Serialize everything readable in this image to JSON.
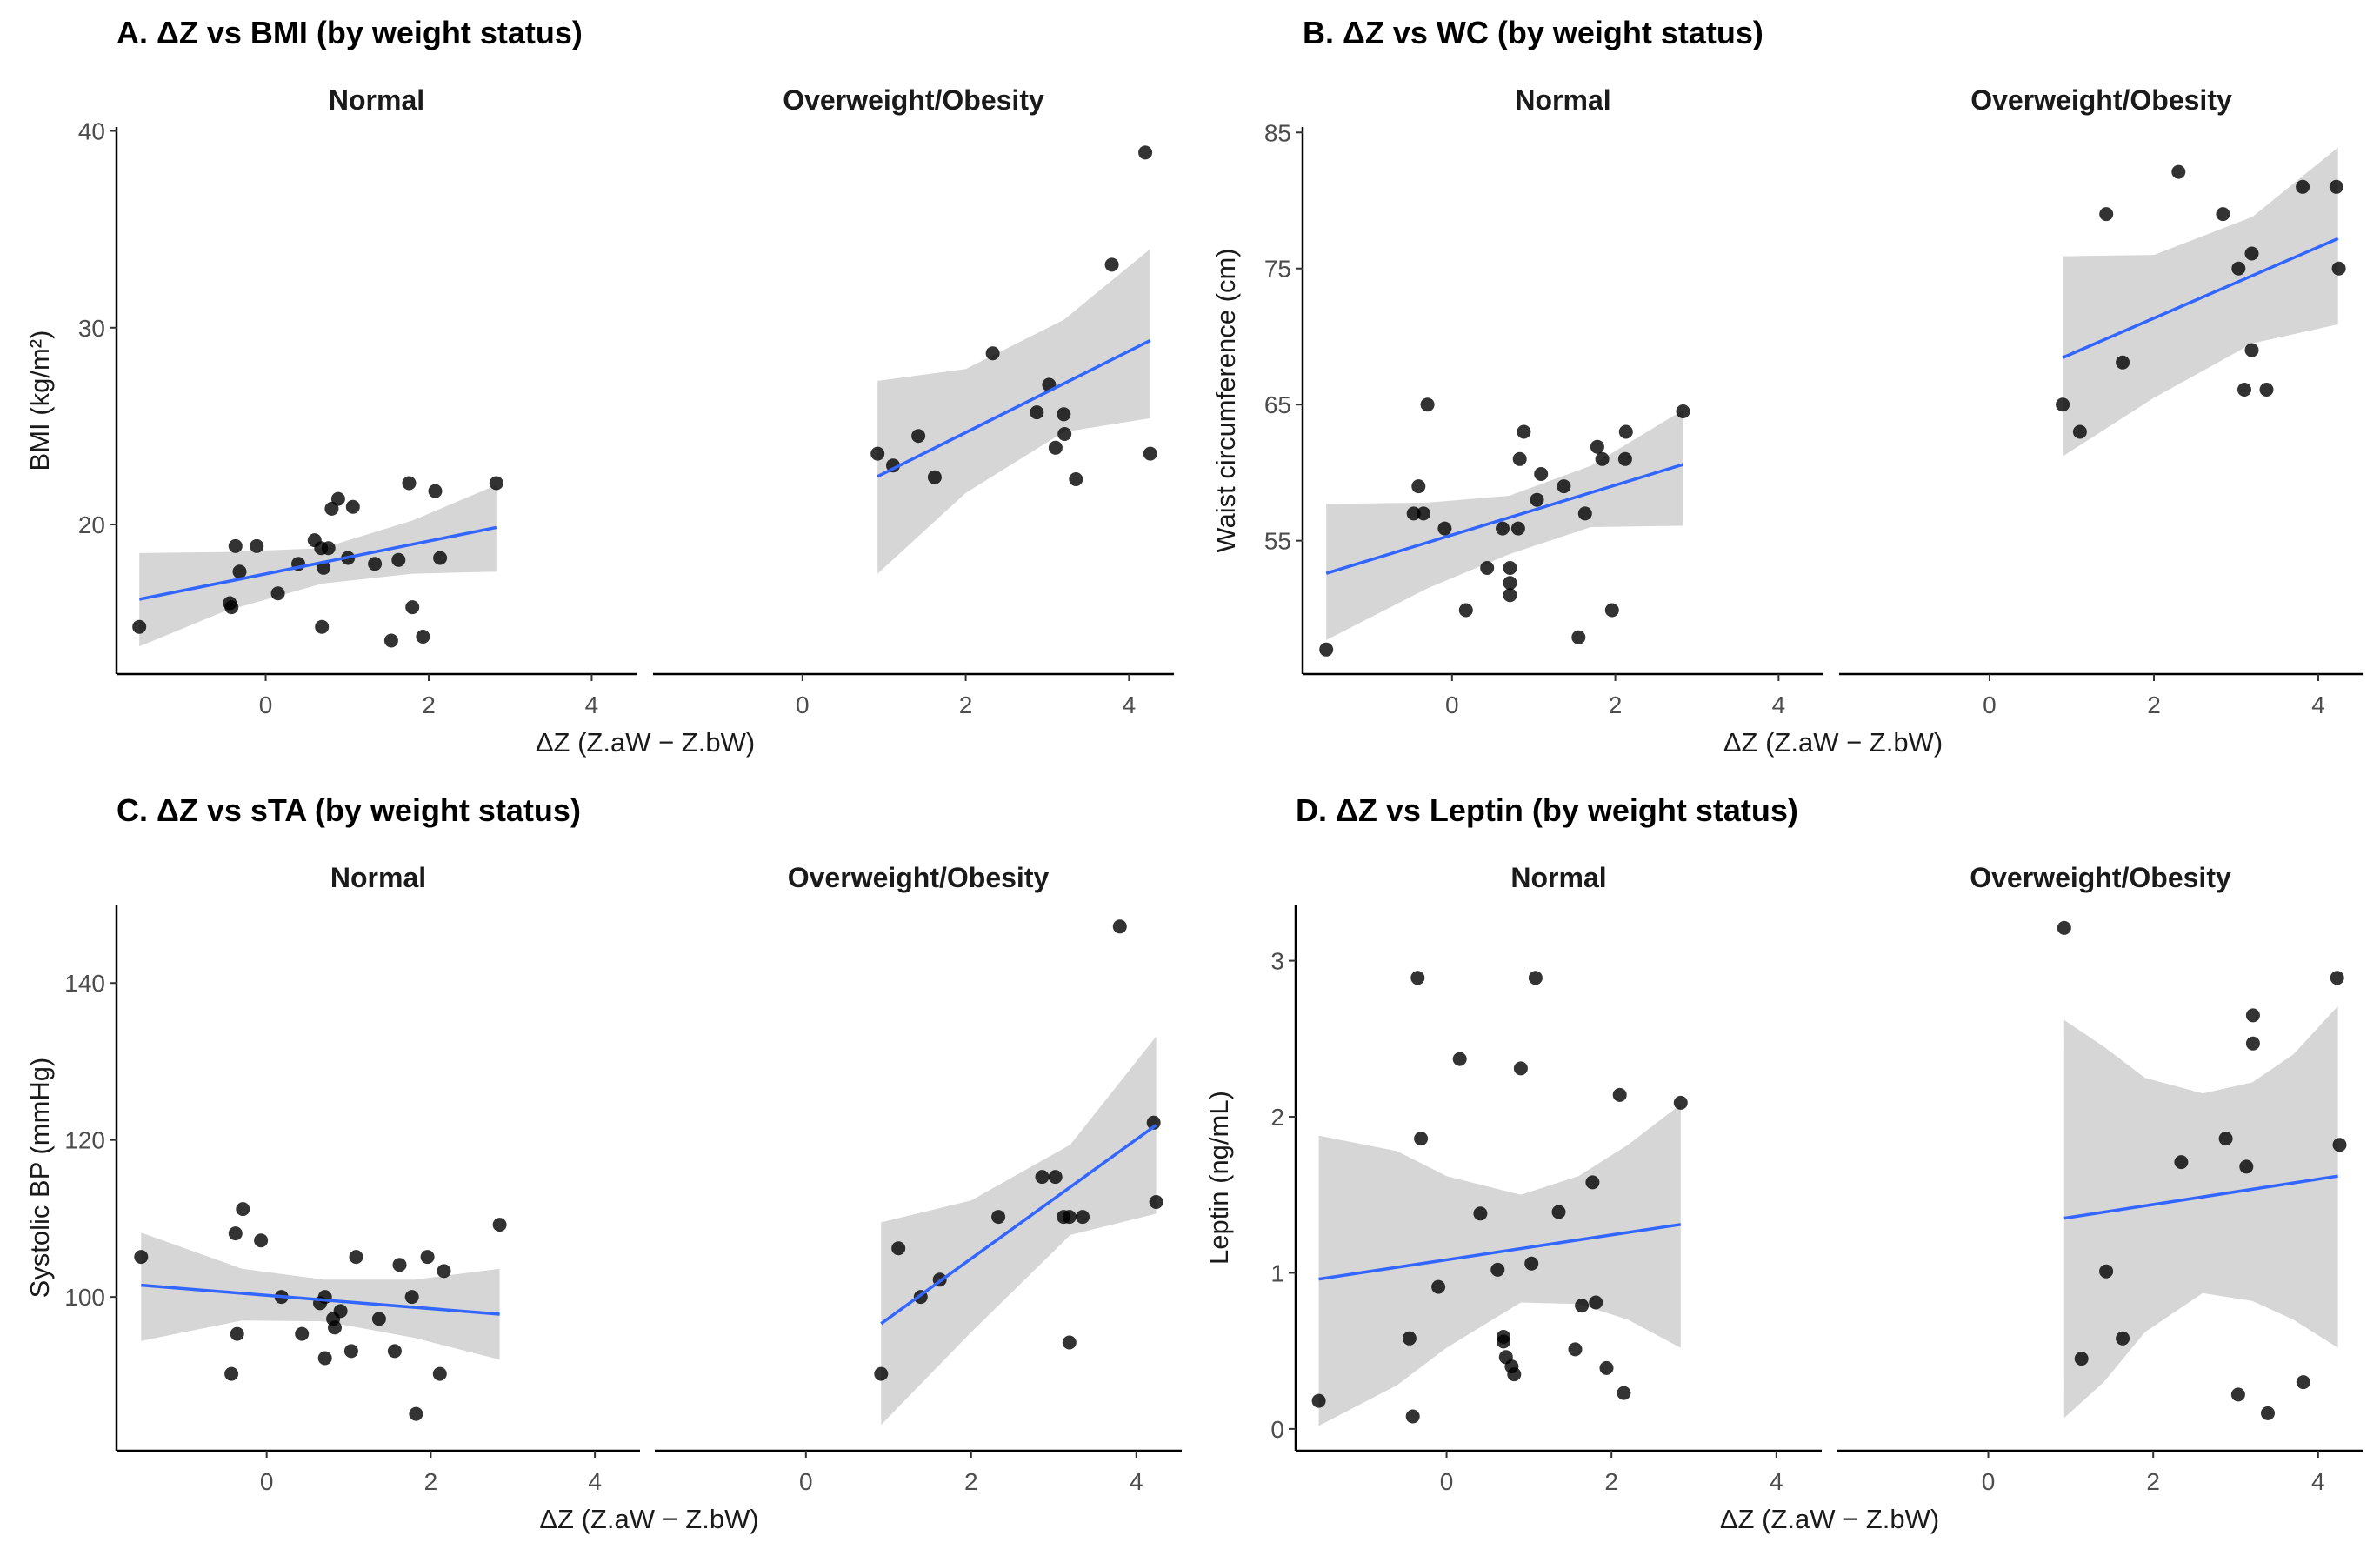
{
  "colors": {
    "fit_line": "#3366FF",
    "band": "#d6d6d6",
    "point": "#000000",
    "axis": "#000000"
  },
  "chart_data": [
    {
      "type": "scatter",
      "title": "A. ΔZ vs BMI (by weight status)",
      "xlabel": "ΔZ (Z.aW − Z.bW)",
      "ylabel": "BMI (kg/m²)",
      "xlim": [
        -1.83,
        4.55
      ],
      "ylim": [
        12.4,
        40.2
      ],
      "xticks": [
        0,
        2,
        4
      ],
      "yticks": [
        20,
        30,
        40
      ],
      "grid": false,
      "facets": [
        {
          "name": "Normal",
          "points": [
            [
              -1.55,
              14.8
            ],
            [
              -0.37,
              18.9
            ],
            [
              -0.11,
              18.9
            ],
            [
              -0.32,
              17.6
            ],
            [
              -0.44,
              16.0
            ],
            [
              -0.42,
              15.8
            ],
            [
              0.15,
              16.5
            ],
            [
              0.4,
              18.0
            ],
            [
              0.6,
              19.2
            ],
            [
              0.68,
              18.8
            ],
            [
              0.77,
              18.8
            ],
            [
              0.71,
              17.8
            ],
            [
              0.81,
              20.8
            ],
            [
              0.89,
              21.3
            ],
            [
              1.07,
              20.9
            ],
            [
              1.01,
              18.3
            ],
            [
              1.34,
              18.0
            ],
            [
              0.69,
              14.8
            ],
            [
              1.54,
              14.1
            ],
            [
              1.63,
              18.2
            ],
            [
              1.8,
              15.8
            ],
            [
              1.76,
              22.1
            ],
            [
              1.93,
              14.3
            ],
            [
              2.08,
              21.7
            ],
            [
              2.14,
              18.3
            ],
            [
              2.83,
              22.1
            ]
          ],
          "fit": [
            [
              -1.55,
              16.2
            ],
            [
              2.83,
              19.85
            ]
          ],
          "band": [
            [
              -1.55,
              13.8,
              18.55
            ],
            [
              -0.5,
              15.6,
              18.6
            ],
            [
              0.7,
              17.0,
              18.8
            ],
            [
              1.8,
              17.5,
              20.2
            ],
            [
              2.83,
              17.6,
              22.0
            ]
          ]
        },
        {
          "name": "Overweight/Obesity",
          "points": [
            [
              0.92,
              23.6
            ],
            [
              1.11,
              23.0
            ],
            [
              1.42,
              24.5
            ],
            [
              1.62,
              22.4
            ],
            [
              2.33,
              28.7
            ],
            [
              2.87,
              25.7
            ],
            [
              3.02,
              27.1
            ],
            [
              3.2,
              25.6
            ],
            [
              3.21,
              24.6
            ],
            [
              3.1,
              23.9
            ],
            [
              3.35,
              22.3
            ],
            [
              3.79,
              33.2
            ],
            [
              4.2,
              38.9
            ],
            [
              4.26,
              23.6
            ]
          ],
          "fit": [
            [
              0.92,
              22.44
            ],
            [
              4.26,
              29.35
            ]
          ],
          "band": [
            [
              0.92,
              17.5,
              27.3
            ],
            [
              2.0,
              21.6,
              27.9
            ],
            [
              3.2,
              24.7,
              30.4
            ],
            [
              4.26,
              25.4,
              34.0
            ]
          ]
        }
      ]
    },
    {
      "type": "scatter",
      "title": "B. ΔZ vs WC (by weight status)",
      "xlabel": "ΔZ (Z.aW − Z.bW)",
      "ylabel": "Waist circumference (cm)",
      "xlim": [
        -1.83,
        4.55
      ],
      "ylim": [
        45.2,
        85.4
      ],
      "xticks": [
        0,
        2,
        4
      ],
      "yticks": [
        55,
        65,
        75,
        85
      ],
      "grid": false,
      "facets": [
        {
          "name": "Normal",
          "points": [
            [
              -1.54,
              47.0
            ],
            [
              -0.3,
              65.0
            ],
            [
              -0.41,
              59.0
            ],
            [
              -0.47,
              57.0
            ],
            [
              -0.35,
              57.0
            ],
            [
              -0.09,
              55.9
            ],
            [
              0.17,
              49.9
            ],
            [
              0.43,
              53.0
            ],
            [
              0.62,
              55.9
            ],
            [
              0.81,
              55.9
            ],
            [
              0.71,
              53.0
            ],
            [
              0.71,
              51.9
            ],
            [
              0.71,
              51.0
            ],
            [
              0.88,
              63.0
            ],
            [
              0.83,
              61.0
            ],
            [
              1.09,
              59.9
            ],
            [
              1.04,
              58.0
            ],
            [
              1.37,
              59.0
            ],
            [
              1.63,
              57.0
            ],
            [
              1.55,
              47.9
            ],
            [
              1.78,
              61.9
            ],
            [
              1.84,
              61.0
            ],
            [
              1.96,
              49.9
            ],
            [
              2.13,
              63.0
            ],
            [
              2.12,
              61.0
            ],
            [
              2.83,
              64.5
            ]
          ],
          "fit": [
            [
              -1.54,
              52.6
            ],
            [
              2.83,
              60.6
            ]
          ],
          "band": [
            [
              -1.54,
              47.7,
              57.7
            ],
            [
              -0.3,
              51.5,
              57.8
            ],
            [
              0.7,
              54.0,
              58.3
            ],
            [
              1.7,
              56.0,
              60.5
            ],
            [
              2.83,
              56.1,
              64.6
            ]
          ]
        },
        {
          "name": "Overweight/Obesity",
          "points": [
            [
              0.89,
              65.0
            ],
            [
              1.1,
              63.0
            ],
            [
              1.42,
              79.0
            ],
            [
              1.62,
              68.1
            ],
            [
              2.3,
              82.1
            ],
            [
              2.84,
              79.0
            ],
            [
              3.03,
              75.0
            ],
            [
              3.19,
              76.1
            ],
            [
              3.19,
              69.0
            ],
            [
              3.1,
              66.1
            ],
            [
              3.37,
              66.1
            ],
            [
              3.81,
              81.0
            ],
            [
              4.22,
              81.0
            ],
            [
              4.25,
              75.0
            ]
          ],
          "fit": [
            [
              0.89,
              68.45
            ],
            [
              4.24,
              77.2
            ]
          ],
          "band": [
            [
              0.89,
              61.2,
              75.9
            ],
            [
              2.0,
              65.5,
              76.0
            ],
            [
              3.2,
              69.5,
              78.8
            ],
            [
              4.24,
              70.9,
              83.9
            ]
          ]
        }
      ]
    },
    {
      "type": "scatter",
      "title": "C. ΔZ vs sTA (by weight status)",
      "xlabel": "ΔZ (Z.aW − Z.bW)",
      "ylabel": "Systolic BP (mmHg)",
      "xlim": [
        -1.83,
        4.55
      ],
      "ylim": [
        80.4,
        150.0
      ],
      "xticks": [
        0,
        2,
        4
      ],
      "yticks": [
        100,
        120,
        140
      ],
      "grid": false,
      "facets": [
        {
          "name": "Normal",
          "points": [
            [
              -1.53,
              105.1
            ],
            [
              -0.29,
              111.2
            ],
            [
              -0.38,
              108.1
            ],
            [
              -0.07,
              107.2
            ],
            [
              -0.36,
              95.3
            ],
            [
              -0.43,
              90.2
            ],
            [
              0.18,
              100.0
            ],
            [
              0.43,
              95.3
            ],
            [
              0.65,
              99.2
            ],
            [
              0.71,
              100.0
            ],
            [
              0.81,
              97.2
            ],
            [
              0.9,
              98.2
            ],
            [
              0.83,
              96.1
            ],
            [
              0.71,
              92.2
            ],
            [
              1.03,
              93.1
            ],
            [
              1.09,
              105.1
            ],
            [
              1.37,
              97.2
            ],
            [
              1.56,
              93.1
            ],
            [
              1.62,
              104.1
            ],
            [
              1.77,
              100.0
            ],
            [
              1.82,
              85.1
            ],
            [
              1.96,
              105.1
            ],
            [
              2.11,
              90.2
            ],
            [
              2.16,
              103.3
            ],
            [
              2.84,
              109.2
            ]
          ],
          "fit": [
            [
              -1.53,
              101.5
            ],
            [
              2.84,
              97.8
            ]
          ],
          "band": [
            [
              -1.53,
              94.4,
              108.2
            ],
            [
              -0.3,
              97.0,
              103.6
            ],
            [
              0.7,
              96.9,
              102.2
            ],
            [
              1.8,
              94.8,
              102.2
            ],
            [
              2.84,
              92.0,
              103.6
            ]
          ]
        },
        {
          "name": "Overweight/Obesity",
          "points": [
            [
              0.91,
              90.2
            ],
            [
              1.12,
              106.2
            ],
            [
              1.39,
              100.0
            ],
            [
              1.62,
              102.2
            ],
            [
              2.33,
              110.2
            ],
            [
              2.86,
              115.3
            ],
            [
              3.02,
              115.3
            ],
            [
              3.12,
              110.2
            ],
            [
              3.19,
              110.2
            ],
            [
              3.35,
              110.2
            ],
            [
              3.19,
              94.2
            ],
            [
              3.8,
              147.2
            ],
            [
              4.21,
              122.2
            ],
            [
              4.24,
              112.1
            ]
          ],
          "fit": [
            [
              0.91,
              96.6
            ],
            [
              4.24,
              121.9
            ]
          ],
          "band": [
            [
              0.91,
              83.7,
              109.5
            ],
            [
              2.0,
              95.5,
              112.3
            ],
            [
              3.2,
              107.9,
              119.4
            ],
            [
              4.24,
              110.6,
              133.2
            ]
          ]
        }
      ]
    },
    {
      "type": "scatter",
      "title": "D. ΔZ vs Leptin (by weight status)",
      "xlabel": "ΔZ (Z.aW − Z.bW)",
      "ylabel": "Leptin (ng/mL)",
      "xlim": [
        -1.83,
        4.55
      ],
      "ylim": [
        -0.14,
        3.36
      ],
      "xticks": [
        0,
        2,
        4
      ],
      "yticks": [
        0,
        1,
        2,
        3
      ],
      "grid": false,
      "facets": [
        {
          "name": "Normal",
          "points": [
            [
              -1.55,
              0.18
            ],
            [
              -0.35,
              2.89
            ],
            [
              -0.31,
              1.86
            ],
            [
              -0.41,
              0.08
            ],
            [
              -0.45,
              0.58
            ],
            [
              -0.1,
              0.91
            ],
            [
              0.16,
              2.37
            ],
            [
              0.41,
              1.38
            ],
            [
              0.62,
              1.02
            ],
            [
              0.69,
              0.59
            ],
            [
              0.69,
              0.56
            ],
            [
              0.72,
              0.46
            ],
            [
              0.79,
              0.4
            ],
            [
              0.82,
              0.35
            ],
            [
              0.9,
              2.31
            ],
            [
              1.03,
              1.06
            ],
            [
              1.08,
              2.89
            ],
            [
              1.36,
              1.39
            ],
            [
              1.56,
              0.51
            ],
            [
              1.64,
              0.79
            ],
            [
              1.81,
              0.81
            ],
            [
              1.77,
              1.58
            ],
            [
              1.94,
              0.39
            ],
            [
              2.1,
              2.14
            ],
            [
              2.15,
              0.23
            ],
            [
              2.84,
              2.09
            ]
          ],
          "fit": [
            [
              -1.55,
              0.96
            ],
            [
              2.84,
              1.31
            ]
          ],
          "band": [
            [
              -1.55,
              0.02,
              1.88
            ],
            [
              -0.6,
              0.28,
              1.78
            ],
            [
              0.0,
              0.52,
              1.62
            ],
            [
              0.9,
              0.81,
              1.5
            ],
            [
              1.6,
              0.8,
              1.62
            ],
            [
              2.2,
              0.7,
              1.82
            ],
            [
              2.84,
              0.52,
              2.08
            ]
          ]
        },
        {
          "name": "Overweight/Obesity",
          "points": [
            [
              0.92,
              3.21
            ],
            [
              1.13,
              0.45
            ],
            [
              1.43,
              1.01
            ],
            [
              1.63,
              0.58
            ],
            [
              2.34,
              1.71
            ],
            [
              2.88,
              1.86
            ],
            [
              3.13,
              1.68
            ],
            [
              3.21,
              2.65
            ],
            [
              3.21,
              2.47
            ],
            [
              3.03,
              0.22
            ],
            [
              3.39,
              0.1
            ],
            [
              3.82,
              0.3
            ],
            [
              4.23,
              2.89
            ],
            [
              4.26,
              1.82
            ]
          ],
          "fit": [
            [
              0.92,
              1.35
            ],
            [
              4.24,
              1.62
            ]
          ],
          "band": [
            [
              0.92,
              0.07,
              2.62
            ],
            [
              1.4,
              0.3,
              2.45
            ],
            [
              1.9,
              0.62,
              2.25
            ],
            [
              2.6,
              0.87,
              2.15
            ],
            [
              3.2,
              0.82,
              2.22
            ],
            [
              3.7,
              0.7,
              2.4
            ],
            [
              4.24,
              0.52,
              2.71
            ]
          ]
        }
      ]
    }
  ]
}
